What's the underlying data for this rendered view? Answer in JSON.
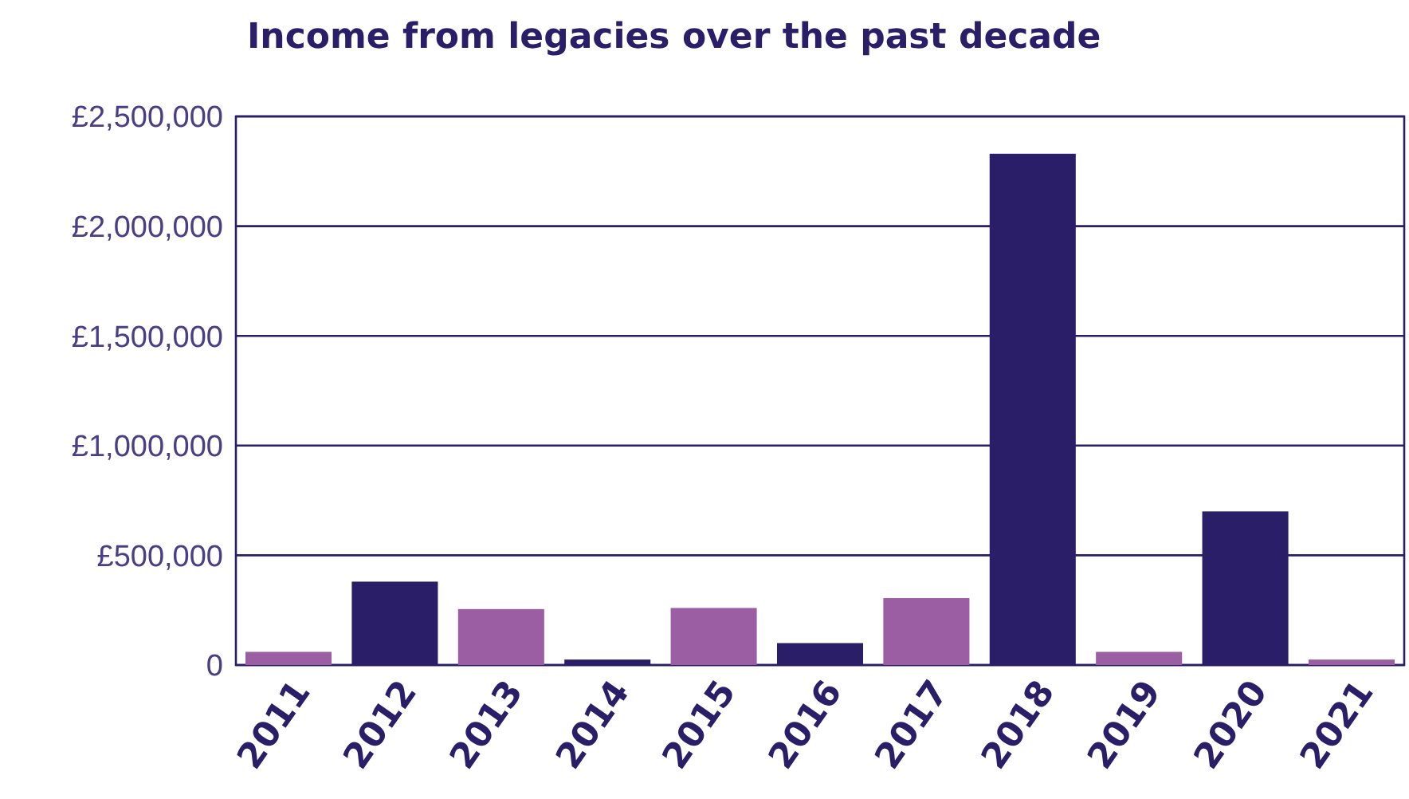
{
  "chart_data": {
    "type": "bar",
    "title": "Income from legacies over the past decade",
    "categories": [
      "2011",
      "2012",
      "2013",
      "2014",
      "2015",
      "2016",
      "2017",
      "2018",
      "2019",
      "2020",
      "2021"
    ],
    "values": [
      60000,
      380000,
      255000,
      25000,
      260000,
      100000,
      305000,
      2330000,
      60000,
      700000,
      25000
    ],
    "colors": [
      "#9b5ea3",
      "#2a1e69",
      "#9b5ea3",
      "#2a1e69",
      "#9b5ea3",
      "#2a1e69",
      "#9b5ea3",
      "#2a1e69",
      "#9b5ea3",
      "#2a1e69",
      "#9b5ea3"
    ],
    "ylim": [
      0,
      2500000
    ],
    "yticks": [
      {
        "value": 0,
        "label": "0"
      },
      {
        "value": 500000,
        "label": "£500,000"
      },
      {
        "value": 1000000,
        "label": "£1,000,000"
      },
      {
        "value": 1500000,
        "label": "£1,500,000"
      },
      {
        "value": 2000000,
        "label": "£2,000,000"
      },
      {
        "value": 2500000,
        "label": "£2,500,000"
      }
    ],
    "grid": "y"
  }
}
